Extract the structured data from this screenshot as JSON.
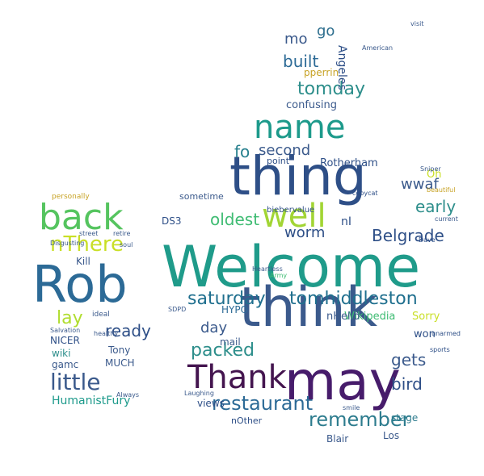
{
  "cloud": {
    "words": [
      "Welcome",
      "think",
      "thing",
      "may",
      "Rob",
      "name",
      "Thank",
      "back",
      "well",
      "restaurant",
      "little",
      "remember",
      "nThere",
      "saturday",
      "tomhiddleston",
      "tomday",
      "packed",
      "worm",
      "oldest",
      "built",
      "ready",
      "lay",
      "Belgrade",
      "second",
      "fo",
      "wwaf",
      "early",
      "day",
      "bird",
      "gets",
      "HumanistFury",
      "Angeles",
      "go",
      "mo",
      "confusing",
      "Rotherham",
      "pperrin",
      "views",
      "Kill",
      "Tony",
      "MUCH",
      "NICER",
      "wiki",
      "gamc",
      "HYPO",
      "DS3",
      "mail",
      "Wikipedia",
      "nHello",
      "won",
      "Sorry",
      "Oh",
      "nI",
      "sometime",
      "Blair",
      "Los",
      "stage",
      "nOther",
      "point",
      "biebervalue",
      "Always",
      "Salvation",
      "ideal",
      "healthy",
      "Disgusting",
      "personally",
      "retire",
      "soul",
      "street",
      "sports",
      "unarmed",
      "copycat",
      "Dave",
      "Army",
      "Heartless",
      "Sniper",
      "visit",
      "American",
      "SDPD",
      "Laughing",
      "beautiful",
      "current",
      "smile"
    ]
  }
}
